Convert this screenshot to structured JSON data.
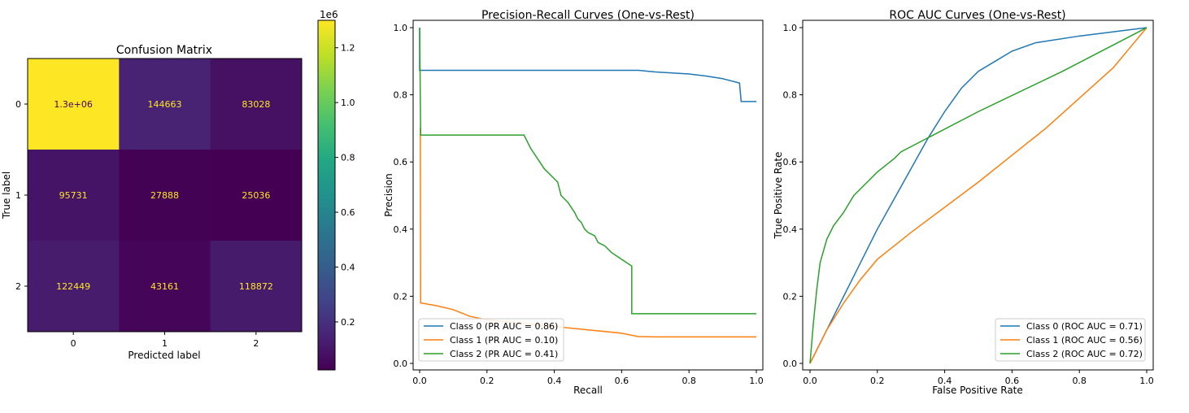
{
  "colors": {
    "class_0": "#1f77b4",
    "class_1": "#ff7f0e",
    "class_2": "#2ca02c",
    "cell_text_light": "#fde725",
    "cell_text_dark": "#440154",
    "colormap": "viridis"
  },
  "chart_data": [
    {
      "type": "heatmap",
      "title": "Confusion Matrix",
      "xlabel": "Predicted label",
      "ylabel": "True label",
      "x_categories": [
        "0",
        "1",
        "2"
      ],
      "y_categories": [
        "0",
        "1",
        "2"
      ],
      "values": [
        [
          1300000,
          144663,
          83028
        ],
        [
          95731,
          27888,
          25036
        ],
        [
          122449,
          43161,
          118872
        ]
      ],
      "cell_labels": [
        [
          "1.3e+06",
          "144663",
          "83028"
        ],
        [
          "95731",
          "27888",
          "25036"
        ],
        [
          "122449",
          "43161",
          "118872"
        ]
      ],
      "colorbar": {
        "multiplier": "1e6",
        "ticks": [
          0.2,
          0.4,
          0.6,
          0.8,
          1.0,
          1.2
        ],
        "tick_labels": [
          "0.2",
          "0.4",
          "0.6",
          "0.8",
          "1.0",
          "1.2"
        ],
        "range": [
          0.0249,
          1.3
        ]
      }
    },
    {
      "type": "line",
      "title": "Precision-Recall Curves (One-vs-Rest)",
      "xlabel": "Recall",
      "ylabel": "Precision",
      "xlim": [
        0,
        1
      ],
      "ylim": [
        0,
        1
      ],
      "xticks": [
        "0.0",
        "0.2",
        "0.4",
        "0.6",
        "0.8",
        "1.0"
      ],
      "yticks": [
        "0.0",
        "0.2",
        "0.4",
        "0.6",
        "0.8",
        "1.0"
      ],
      "legend_position": "lower-left",
      "series": [
        {
          "name": "Class 0 (PR AUC = 0.86)",
          "color_key": "class_0",
          "points": [
            [
              0,
              1.0
            ],
            [
              0,
              0.873
            ],
            [
              0.65,
              0.873
            ],
            [
              0.7,
              0.868
            ],
            [
              0.8,
              0.862
            ],
            [
              0.85,
              0.856
            ],
            [
              0.9,
              0.848
            ],
            [
              0.95,
              0.835
            ],
            [
              0.955,
              0.78
            ],
            [
              1.0,
              0.78
            ]
          ]
        },
        {
          "name": "Class 1 (PR AUC = 0.10)",
          "color_key": "class_1",
          "points": [
            [
              0,
              0.7
            ],
            [
              0.002,
              0.7
            ],
            [
              0.003,
              0.18
            ],
            [
              0.05,
              0.172
            ],
            [
              0.1,
              0.16
            ],
            [
              0.15,
              0.14
            ],
            [
              0.2,
              0.13
            ],
            [
              0.3,
              0.12
            ],
            [
              0.5,
              0.1
            ],
            [
              0.6,
              0.09
            ],
            [
              0.65,
              0.08
            ],
            [
              0.7,
              0.079
            ],
            [
              1.0,
              0.079
            ]
          ]
        },
        {
          "name": "Class 2 (PR AUC = 0.41)",
          "color_key": "class_2",
          "points": [
            [
              0,
              1.0
            ],
            [
              0.003,
              0.68
            ],
            [
              0.31,
              0.68
            ],
            [
              0.33,
              0.64
            ],
            [
              0.35,
              0.61
            ],
            [
              0.37,
              0.58
            ],
            [
              0.4,
              0.55
            ],
            [
              0.41,
              0.54
            ],
            [
              0.42,
              0.5
            ],
            [
              0.44,
              0.48
            ],
            [
              0.46,
              0.45
            ],
            [
              0.47,
              0.43
            ],
            [
              0.48,
              0.42
            ],
            [
              0.49,
              0.4
            ],
            [
              0.5,
              0.39
            ],
            [
              0.52,
              0.38
            ],
            [
              0.53,
              0.36
            ],
            [
              0.55,
              0.35
            ],
            [
              0.57,
              0.33
            ],
            [
              0.6,
              0.31
            ],
            [
              0.63,
              0.29
            ],
            [
              0.63,
              0.148
            ],
            [
              1.0,
              0.148
            ]
          ]
        }
      ]
    },
    {
      "type": "line",
      "title": "ROC AUC Curves (One-vs-Rest)",
      "xlabel": "False Positive Rate",
      "ylabel": "True Positive Rate",
      "xlim": [
        0,
        1
      ],
      "ylim": [
        0,
        1
      ],
      "xticks": [
        "0.0",
        "0.2",
        "0.4",
        "0.6",
        "0.8",
        "1.0"
      ],
      "yticks": [
        "0.0",
        "0.2",
        "0.4",
        "0.6",
        "0.8",
        "1.0"
      ],
      "legend_position": "lower-right",
      "series": [
        {
          "name": "Class 0 (ROC AUC = 0.71)",
          "color_key": "class_0",
          "points": [
            [
              0,
              0
            ],
            [
              0.1,
              0.2
            ],
            [
              0.2,
              0.4
            ],
            [
              0.3,
              0.58
            ],
            [
              0.35,
              0.67
            ],
            [
              0.4,
              0.75
            ],
            [
              0.45,
              0.82
            ],
            [
              0.5,
              0.87
            ],
            [
              0.55,
              0.9
            ],
            [
              0.6,
              0.93
            ],
            [
              0.67,
              0.955
            ],
            [
              0.8,
              0.975
            ],
            [
              1.0,
              1.0
            ]
          ]
        },
        {
          "name": "Class 1 (ROC AUC = 0.56)",
          "color_key": "class_1",
          "points": [
            [
              0,
              0
            ],
            [
              0.05,
              0.1
            ],
            [
              0.1,
              0.18
            ],
            [
              0.15,
              0.25
            ],
            [
              0.2,
              0.31
            ],
            [
              0.3,
              0.39
            ],
            [
              0.5,
              0.54
            ],
            [
              0.7,
              0.7
            ],
            [
              0.9,
              0.88
            ],
            [
              1.0,
              1.0
            ]
          ]
        },
        {
          "name": "Class 2 (ROC AUC = 0.72)",
          "color_key": "class_2",
          "points": [
            [
              0,
              0
            ],
            [
              0.01,
              0.12
            ],
            [
              0.02,
              0.22
            ],
            [
              0.03,
              0.3
            ],
            [
              0.05,
              0.37
            ],
            [
              0.07,
              0.41
            ],
            [
              0.1,
              0.45
            ],
            [
              0.13,
              0.5
            ],
            [
              0.17,
              0.54
            ],
            [
              0.2,
              0.57
            ],
            [
              0.25,
              0.61
            ],
            [
              0.27,
              0.63
            ],
            [
              0.5,
              0.75
            ],
            [
              0.75,
              0.87
            ],
            [
              1.0,
              1.0
            ]
          ]
        }
      ]
    }
  ]
}
